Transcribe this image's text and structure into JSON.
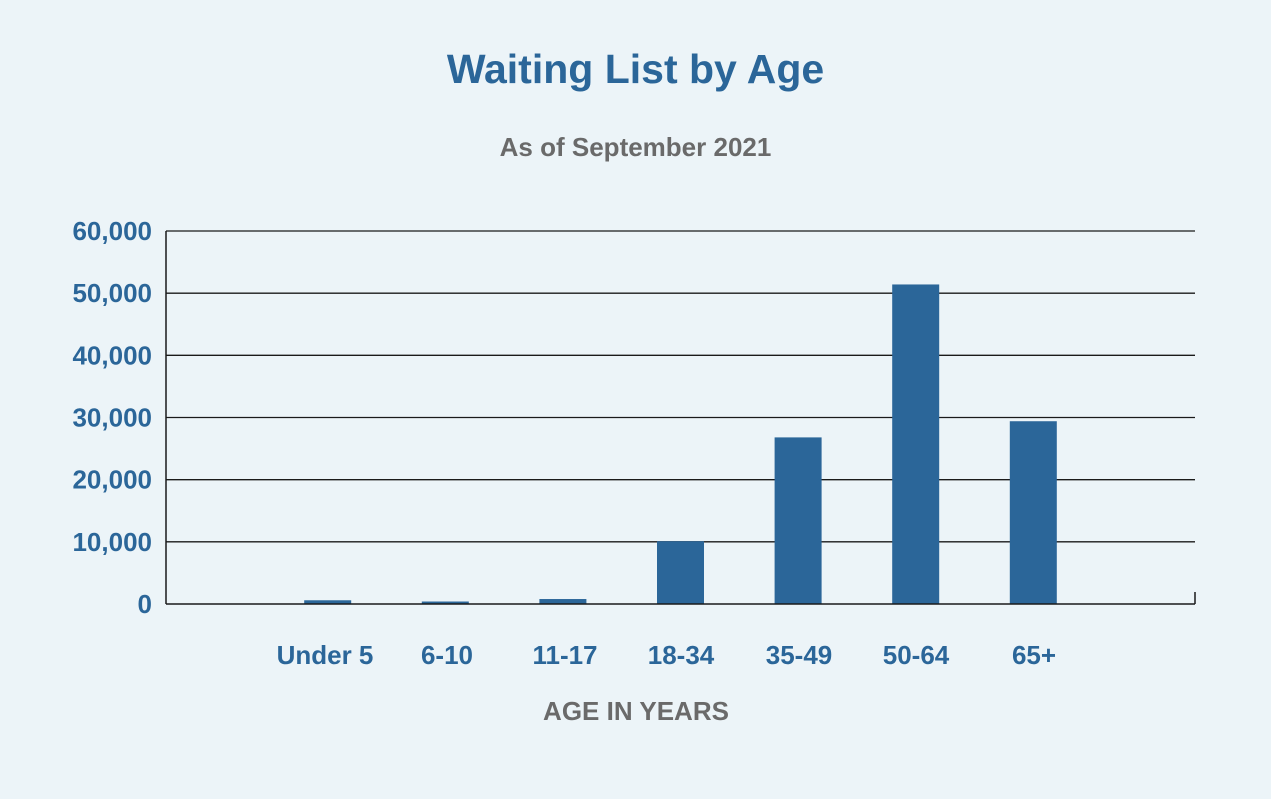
{
  "chart_data": {
    "type": "bar",
    "title": "Waiting List by Age",
    "subtitle": "As of September 2021",
    "xlabel": "AGE IN YEARS",
    "ylabel": "",
    "categories": [
      "Under 5",
      "6-10",
      "11-17",
      "18-34",
      "35-49",
      "50-64",
      "65+"
    ],
    "values": [
      600,
      400,
      800,
      10100,
      26800,
      51400,
      29400
    ],
    "ylim": [
      0,
      60000
    ],
    "yticks": [
      "0",
      "10,000",
      "20,000",
      "30,000",
      "40,000",
      "50,000",
      "60,000"
    ],
    "ytick_values": [
      0,
      10000,
      20000,
      30000,
      40000,
      50000,
      60000
    ],
    "grid": true,
    "legend": "none",
    "colors": {
      "bar": "#2b6699",
      "title": "#2b6699",
      "subtitle": "#6a6a6a",
      "tick_label": "#2b6699",
      "axis_title": "#6a6a6a",
      "background": "#ecf4f8",
      "grid": "#1a1a1a"
    }
  }
}
